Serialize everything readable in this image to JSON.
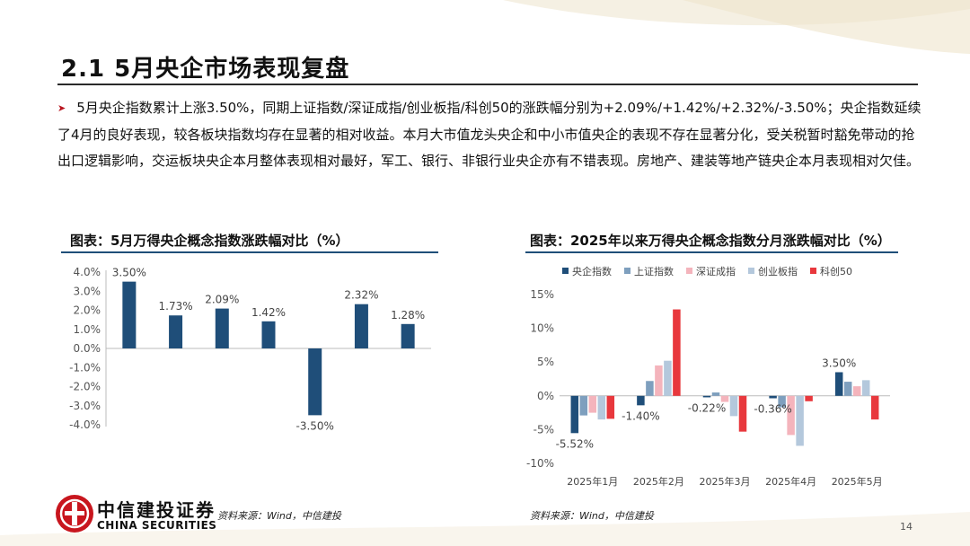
{
  "header": {
    "title": "2.1  5月央企市场表现复盘"
  },
  "summary": {
    "text": "5月央企指数累计上涨3.50%，同期上证指数/深证成指/创业板指/科创50的涨跌幅分别为+2.09%/+1.42%/+2.32%/-3.50%；央企指数延续了4月的良好表现，较各板块指数均存在显著的相对收益。本月大市值龙头央企和中小市值央企的表现不存在显著分化，受关税暂时豁免带动的抢出口逻辑影响，交运板块央企本月整体表现相对最好，军工、银行、非银行业央企亦有不错表现。房地产、建装等地产链央企本月表现相对欠佳。"
  },
  "colors": {
    "navy": "#1f4e79",
    "steel": "#7e9fbe",
    "pink": "#f4b4bc",
    "light_blue": "#b4c8dc",
    "red": "#e8383d"
  },
  "chart_data": [
    {
      "type": "bar",
      "title": "图表：5月万得央企概念指数涨跌幅对比（%）",
      "categories": [
        "",
        "",
        "",
        "",
        "",
        "",
        ""
      ],
      "values": [
        3.5,
        1.73,
        2.09,
        1.42,
        -3.5,
        2.32,
        1.28
      ],
      "data_labels": [
        "3.50%",
        "1.73%",
        "2.09%",
        "1.42%",
        "-3.50%",
        "2.32%",
        "1.28%"
      ],
      "yticks": [
        "4.0%",
        "3.0%",
        "2.0%",
        "1.0%",
        "0.0%",
        "-1.0%",
        "-2.0%",
        "-3.0%",
        "-4.0%"
      ],
      "ylim": [
        -4.0,
        4.0
      ],
      "grid": false,
      "color": "#1f4e79"
    },
    {
      "type": "bar",
      "title": "图表：2025年以来万得央企概念指数分月涨跌幅对比（%）",
      "categories": [
        "2025年1月",
        "2025年2月",
        "2025年3月",
        "2025年4月",
        "2025年5月"
      ],
      "series": [
        {
          "name": "央企指数",
          "values": [
            -5.52,
            -1.4,
            -0.22,
            -0.36,
            3.5
          ],
          "color": "#1f4e79"
        },
        {
          "name": "上证指数",
          "values": [
            -2.9,
            2.2,
            0.5,
            -1.7,
            2.09
          ],
          "color": "#7e9fbe"
        },
        {
          "name": "深证成指",
          "values": [
            -2.5,
            4.5,
            -0.9,
            -5.8,
            1.42
          ],
          "color": "#f4b4bc"
        },
        {
          "name": "创业板指",
          "values": [
            -3.5,
            5.2,
            -3.0,
            -7.4,
            2.32
          ],
          "color": "#b4c8dc"
        },
        {
          "name": "科创50",
          "values": [
            -3.4,
            12.8,
            -5.3,
            -0.8,
            -3.5
          ],
          "color": "#e8383d"
        }
      ],
      "data_labels": [
        "-5.52%",
        "-1.40%",
        "-0.22%",
        "-0.36%",
        "3.50%"
      ],
      "yticks": [
        "15%",
        "10%",
        "5%",
        "0%",
        "-5%",
        "-10%"
      ],
      "ylim": [
        -10,
        15
      ],
      "legend": "top",
      "grid": false
    }
  ],
  "footer": {
    "company_cn": "中信建投证券",
    "company_en": "CHINA SECURITIES",
    "source_left": "资料来源：Wind，中信建投",
    "source_right": "资料来源：Wind，中信建投",
    "page": "14"
  }
}
